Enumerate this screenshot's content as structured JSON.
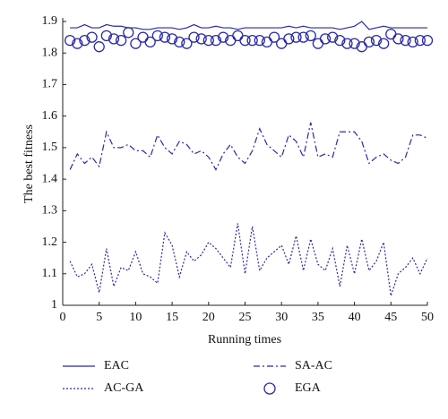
{
  "chart_data": {
    "type": "line",
    "xlabel": "Running times",
    "ylabel": "The best fitness",
    "x": [
      1,
      2,
      3,
      4,
      5,
      6,
      7,
      8,
      9,
      10,
      11,
      12,
      13,
      14,
      15,
      16,
      17,
      18,
      19,
      20,
      21,
      22,
      23,
      24,
      25,
      26,
      27,
      28,
      29,
      30,
      31,
      32,
      33,
      34,
      35,
      36,
      37,
      38,
      39,
      40,
      41,
      42,
      43,
      44,
      45,
      46,
      47,
      48,
      49,
      50
    ],
    "xlim": [
      0,
      50
    ],
    "xticks": [
      0,
      5,
      10,
      15,
      20,
      25,
      30,
      35,
      40,
      45,
      50
    ],
    "ylim": [
      1,
      1.9
    ],
    "yticks": [
      1,
      1.1,
      1.2,
      1.3,
      1.4,
      1.5,
      1.6,
      1.7,
      1.8,
      1.9
    ],
    "series": [
      {
        "name": "EAC",
        "color": "#2a2aa8",
        "linestyle": "solid",
        "values": [
          1.88,
          1.88,
          1.89,
          1.88,
          1.88,
          1.89,
          1.885,
          1.885,
          1.88,
          1.88,
          1.875,
          1.875,
          1.88,
          1.88,
          1.88,
          1.875,
          1.88,
          1.89,
          1.88,
          1.88,
          1.885,
          1.88,
          1.88,
          1.875,
          1.88,
          1.88,
          1.88,
          1.88,
          1.88,
          1.88,
          1.885,
          1.88,
          1.885,
          1.88,
          1.88,
          1.88,
          1.88,
          1.875,
          1.88,
          1.885,
          1.9,
          1.875,
          1.88,
          1.885,
          1.88,
          1.88,
          1.88,
          1.88,
          1.88,
          1.88
        ]
      },
      {
        "name": "AC-GA",
        "color": "#2a2aa8",
        "linestyle": "dotted",
        "values": [
          1.14,
          1.09,
          1.1,
          1.13,
          1.04,
          1.18,
          1.06,
          1.12,
          1.11,
          1.17,
          1.1,
          1.09,
          1.07,
          1.23,
          1.19,
          1.09,
          1.17,
          1.14,
          1.16,
          1.2,
          1.18,
          1.15,
          1.12,
          1.26,
          1.1,
          1.25,
          1.11,
          1.15,
          1.17,
          1.19,
          1.13,
          1.22,
          1.11,
          1.21,
          1.13,
          1.11,
          1.18,
          1.06,
          1.19,
          1.1,
          1.21,
          1.11,
          1.14,
          1.2,
          1.03,
          1.1,
          1.12,
          1.15,
          1.1,
          1.15
        ]
      },
      {
        "name": "SA-AC",
        "color": "#2a2aa8",
        "linestyle": "dashdot",
        "values": [
          1.43,
          1.48,
          1.45,
          1.47,
          1.44,
          1.55,
          1.5,
          1.5,
          1.51,
          1.49,
          1.49,
          1.47,
          1.54,
          1.5,
          1.48,
          1.52,
          1.51,
          1.48,
          1.49,
          1.47,
          1.43,
          1.48,
          1.51,
          1.47,
          1.45,
          1.49,
          1.56,
          1.51,
          1.49,
          1.47,
          1.54,
          1.52,
          1.47,
          1.58,
          1.47,
          1.48,
          1.47,
          1.55,
          1.55,
          1.55,
          1.52,
          1.45,
          1.47,
          1.48,
          1.46,
          1.45,
          1.47,
          1.54,
          1.54,
          1.53
        ]
      },
      {
        "name": "EGA",
        "color": "#2a2aa8",
        "marker": "circle",
        "values": [
          1.84,
          1.83,
          1.84,
          1.85,
          1.82,
          1.855,
          1.845,
          1.84,
          1.865,
          1.83,
          1.85,
          1.835,
          1.855,
          1.85,
          1.845,
          1.835,
          1.83,
          1.85,
          1.845,
          1.84,
          1.84,
          1.85,
          1.84,
          1.855,
          1.84,
          1.84,
          1.84,
          1.835,
          1.85,
          1.83,
          1.845,
          1.85,
          1.85,
          1.855,
          1.83,
          1.845,
          1.85,
          1.84,
          1.83,
          1.83,
          1.82,
          1.835,
          1.84,
          1.83,
          1.86,
          1.845,
          1.84,
          1.835,
          1.84,
          1.84
        ]
      }
    ]
  }
}
